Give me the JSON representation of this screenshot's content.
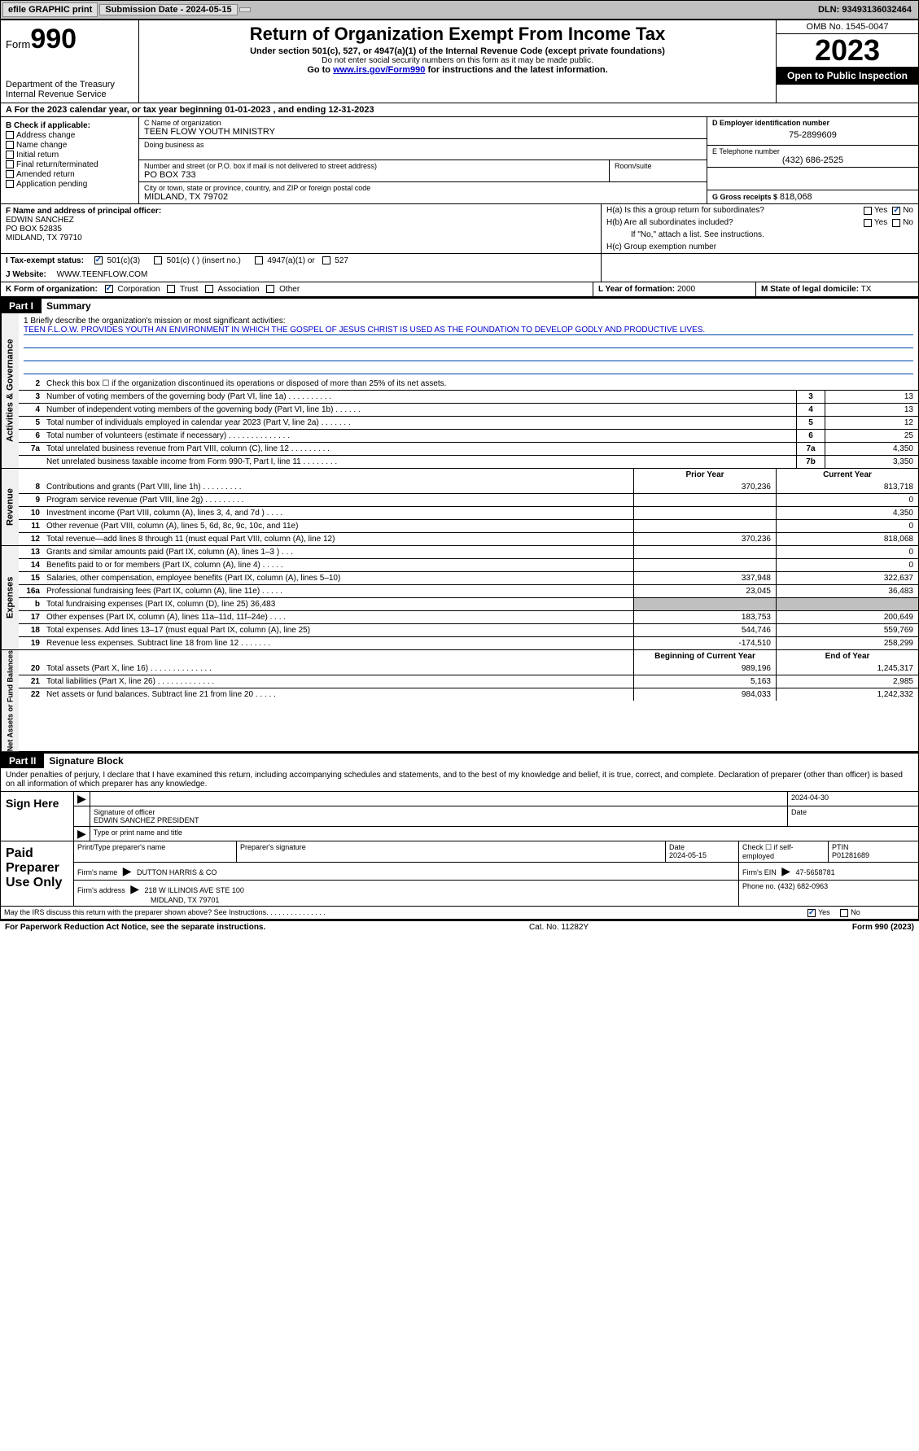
{
  "topbar": {
    "efile": "efile GRAPHIC print",
    "submission": "Submission Date - 2024-05-15",
    "dln": "DLN: 93493136032464"
  },
  "header": {
    "form_label": "Form",
    "form_number": "990",
    "dept": "Department of the Treasury",
    "irs": "Internal Revenue Service",
    "title": "Return of Organization Exempt From Income Tax",
    "subtitle": "Under section 501(c), 527, or 4947(a)(1) of the Internal Revenue Code (except private foundations)",
    "no_ssn": "Do not enter social security numbers on this form as it may be made public.",
    "goto_prefix": "Go to ",
    "goto_link": "www.irs.gov/Form990",
    "goto_suffix": " for instructions and the latest information.",
    "omb": "OMB No. 1545-0047",
    "year": "2023",
    "inspect": "Open to Public Inspection"
  },
  "row_a": "A  For the 2023 calendar year, or tax year beginning 01-01-2023   , and ending 12-31-2023",
  "col_b": {
    "title": "B Check if applicable:",
    "items": [
      "Address change",
      "Name change",
      "Initial return",
      "Final return/terminated",
      "Amended return",
      "Application pending"
    ]
  },
  "col_c": {
    "name_lbl": "C Name of organization",
    "name": "TEEN FLOW YOUTH MINISTRY",
    "dba_lbl": "Doing business as",
    "dba": "",
    "street_lbl": "Number and street (or P.O. box if mail is not delivered to street address)",
    "street": "PO BOX 733",
    "room_lbl": "Room/suite",
    "city_lbl": "City or town, state or province, country, and ZIP or foreign postal code",
    "city": "MIDLAND, TX  79702"
  },
  "col_de": {
    "ein_lbl": "D Employer identification number",
    "ein": "75-2899609",
    "phone_lbl": "E Telephone number",
    "phone": "(432) 686-2525",
    "gross_lbl": "G Gross receipts $",
    "gross": "818,068"
  },
  "row_f": {
    "lbl": "F Name and address of principal officer:",
    "name": "EDWIN SANCHEZ",
    "street": "PO BOX 52835",
    "city": "MIDLAND, TX  79710"
  },
  "row_h": {
    "ha": "H(a)  Is this a group return for subordinates?",
    "hb": "H(b)  Are all subordinates included?",
    "hb_note": "If \"No,\" attach a list. See instructions.",
    "hc": "H(c)  Group exemption number",
    "yes": "Yes",
    "no": "No"
  },
  "row_i": {
    "lbl": "I   Tax-exempt status:",
    "opt1": "501(c)(3)",
    "opt2": "501(c) (  ) (insert no.)",
    "opt3": "4947(a)(1) or",
    "opt4": "527"
  },
  "row_j": {
    "lbl": "J   Website:",
    "val": "WWW.TEENFLOW.COM"
  },
  "row_k": {
    "lbl": "K Form of organization:",
    "opts": [
      "Corporation",
      "Trust",
      "Association",
      "Other"
    ],
    "l_lbl": "L Year of formation:",
    "l_val": "2000",
    "m_lbl": "M State of legal domicile:",
    "m_val": "TX"
  },
  "parts": {
    "p1": "Part I",
    "p1_title": "Summary",
    "p2": "Part II",
    "p2_title": "Signature Block"
  },
  "vside": {
    "ag": "Activities & Governance",
    "rev": "Revenue",
    "exp": "Expenses",
    "na": "Net Assets or Fund Balances"
  },
  "mission": {
    "lbl": "1   Briefly describe the organization's mission or most significant activities:",
    "text": "TEEN F.L.O.W. PROVIDES YOUTH AN ENVIRONMENT IN WHICH THE GOSPEL OF JESUS CHRIST IS USED AS THE FOUNDATION TO DEVELOP GODLY AND PRODUCTIVE LIVES."
  },
  "lines_ag": [
    {
      "n": "2",
      "t": "Check this box ☐ if the organization discontinued its operations or disposed of more than 25% of its net assets.",
      "box": "",
      "val": ""
    },
    {
      "n": "3",
      "t": "Number of voting members of the governing body (Part VI, line 1a)   .   .   .   .   .   .   .   .   .   .",
      "box": "3",
      "val": "13"
    },
    {
      "n": "4",
      "t": "Number of independent voting members of the governing body (Part VI, line 1b)   .   .   .   .   .   .",
      "box": "4",
      "val": "13"
    },
    {
      "n": "5",
      "t": "Total number of individuals employed in calendar year 2023 (Part V, line 2a)   .   .   .   .   .   .   .",
      "box": "5",
      "val": "12"
    },
    {
      "n": "6",
      "t": "Total number of volunteers (estimate if necessary)   .   .   .   .   .   .   .   .   .   .   .   .   .   .",
      "box": "6",
      "val": "25"
    },
    {
      "n": "7a",
      "t": "Total unrelated business revenue from Part VIII, column (C), line 12   .   .   .   .   .   .   .   .   .",
      "box": "7a",
      "val": "4,350"
    },
    {
      "n": "",
      "t": "Net unrelated business taxable income from Form 990-T, Part I, line 11   .   .   .   .   .   .   .   .",
      "box": "7b",
      "val": "3,350"
    }
  ],
  "col_hdrs": {
    "prior": "Prior Year",
    "current": "Current Year",
    "boy": "Beginning of Current Year",
    "eoy": "End of Year"
  },
  "lines_rev": [
    {
      "n": "8",
      "t": "Contributions and grants (Part VIII, line 1h)   .   .   .   .   .   .   .   .   .",
      "p": "370,236",
      "c": "813,718"
    },
    {
      "n": "9",
      "t": "Program service revenue (Part VIII, line 2g)   .   .   .   .   .   .   .   .   .",
      "p": "",
      "c": "0"
    },
    {
      "n": "10",
      "t": "Investment income (Part VIII, column (A), lines 3, 4, and 7d )   .   .   .   .",
      "p": "",
      "c": "4,350"
    },
    {
      "n": "11",
      "t": "Other revenue (Part VIII, column (A), lines 5, 6d, 8c, 9c, 10c, and 11e)",
      "p": "",
      "c": "0"
    },
    {
      "n": "12",
      "t": "Total revenue—add lines 8 through 11 (must equal Part VIII, column (A), line 12)",
      "p": "370,236",
      "c": "818,068"
    }
  ],
  "lines_exp": [
    {
      "n": "13",
      "t": "Grants and similar amounts paid (Part IX, column (A), lines 1–3 )   .   .   .",
      "p": "",
      "c": "0"
    },
    {
      "n": "14",
      "t": "Benefits paid to or for members (Part IX, column (A), line 4)   .   .   .   .   .",
      "p": "",
      "c": "0"
    },
    {
      "n": "15",
      "t": "Salaries, other compensation, employee benefits (Part IX, column (A), lines 5–10)",
      "p": "337,948",
      "c": "322,637"
    },
    {
      "n": "16a",
      "t": "Professional fundraising fees (Part IX, column (A), line 11e)   .   .   .   .   .",
      "p": "23,045",
      "c": "36,483"
    },
    {
      "n": "b",
      "t": "Total fundraising expenses (Part IX, column (D), line 25) 36,483",
      "p": "GREY",
      "c": "GREY"
    },
    {
      "n": "17",
      "t": "Other expenses (Part IX, column (A), lines 11a–11d, 11f–24e)   .   .   .   .",
      "p": "183,753",
      "c": "200,649"
    },
    {
      "n": "18",
      "t": "Total expenses. Add lines 13–17 (must equal Part IX, column (A), line 25)",
      "p": "544,746",
      "c": "559,769"
    },
    {
      "n": "19",
      "t": "Revenue less expenses. Subtract line 18 from line 12   .   .   .   .   .   .   .",
      "p": "-174,510",
      "c": "258,299"
    }
  ],
  "lines_na": [
    {
      "n": "20",
      "t": "Total assets (Part X, line 16)   .   .   .   .   .   .   .   .   .   .   .   .   .   .",
      "p": "989,196",
      "c": "1,245,317"
    },
    {
      "n": "21",
      "t": "Total liabilities (Part X, line 26)   .   .   .   .   .   .   .   .   .   .   .   .   .",
      "p": "5,163",
      "c": "2,985"
    },
    {
      "n": "22",
      "t": "Net assets or fund balances. Subtract line 21 from line 20   .   .   .   .   .",
      "p": "984,033",
      "c": "1,242,332"
    }
  ],
  "sig": {
    "perjury": "Under penalties of perjury, I declare that I have examined this return, including accompanying schedules and statements, and to the best of my knowledge and belief, it is true, correct, and complete. Declaration of preparer (other than officer) is based on all information of which preparer has any knowledge.",
    "sign_here": "Sign Here",
    "sig_officer_lbl": "Signature of officer",
    "sig_officer": "EDWIN SANCHEZ PRESIDENT",
    "sig_type_lbl": "Type or print name and title",
    "date_lbl": "Date",
    "date1": "2024-04-30",
    "paid": "Paid Preparer Use Only",
    "prep_name_lbl": "Print/Type preparer's name",
    "prep_sig_lbl": "Preparer's signature",
    "prep_date": "2024-05-15",
    "self_emp": "Check ☐ if self-employed",
    "ptin_lbl": "PTIN",
    "ptin": "P01281689",
    "firm_name_lbl": "Firm's name",
    "firm_name": "DUTTON HARRIS & CO",
    "firm_ein_lbl": "Firm's EIN",
    "firm_ein": "47-5658781",
    "firm_addr_lbl": "Firm's address",
    "firm_addr1": "218 W ILLINOIS AVE STE 100",
    "firm_addr2": "MIDLAND, TX  79701",
    "firm_phone_lbl": "Phone no.",
    "firm_phone": "(432) 682-0963",
    "discuss": "May the IRS discuss this return with the preparer shown above? See Instructions.   .   .   .   .   .   .   .   .   .   .   .   .   .   .",
    "yes": "Yes",
    "no": "No"
  },
  "footer": {
    "left": "For Paperwork Reduction Act Notice, see the separate instructions.",
    "mid": "Cat. No. 11282Y",
    "right": "Form 990 (2023)"
  }
}
